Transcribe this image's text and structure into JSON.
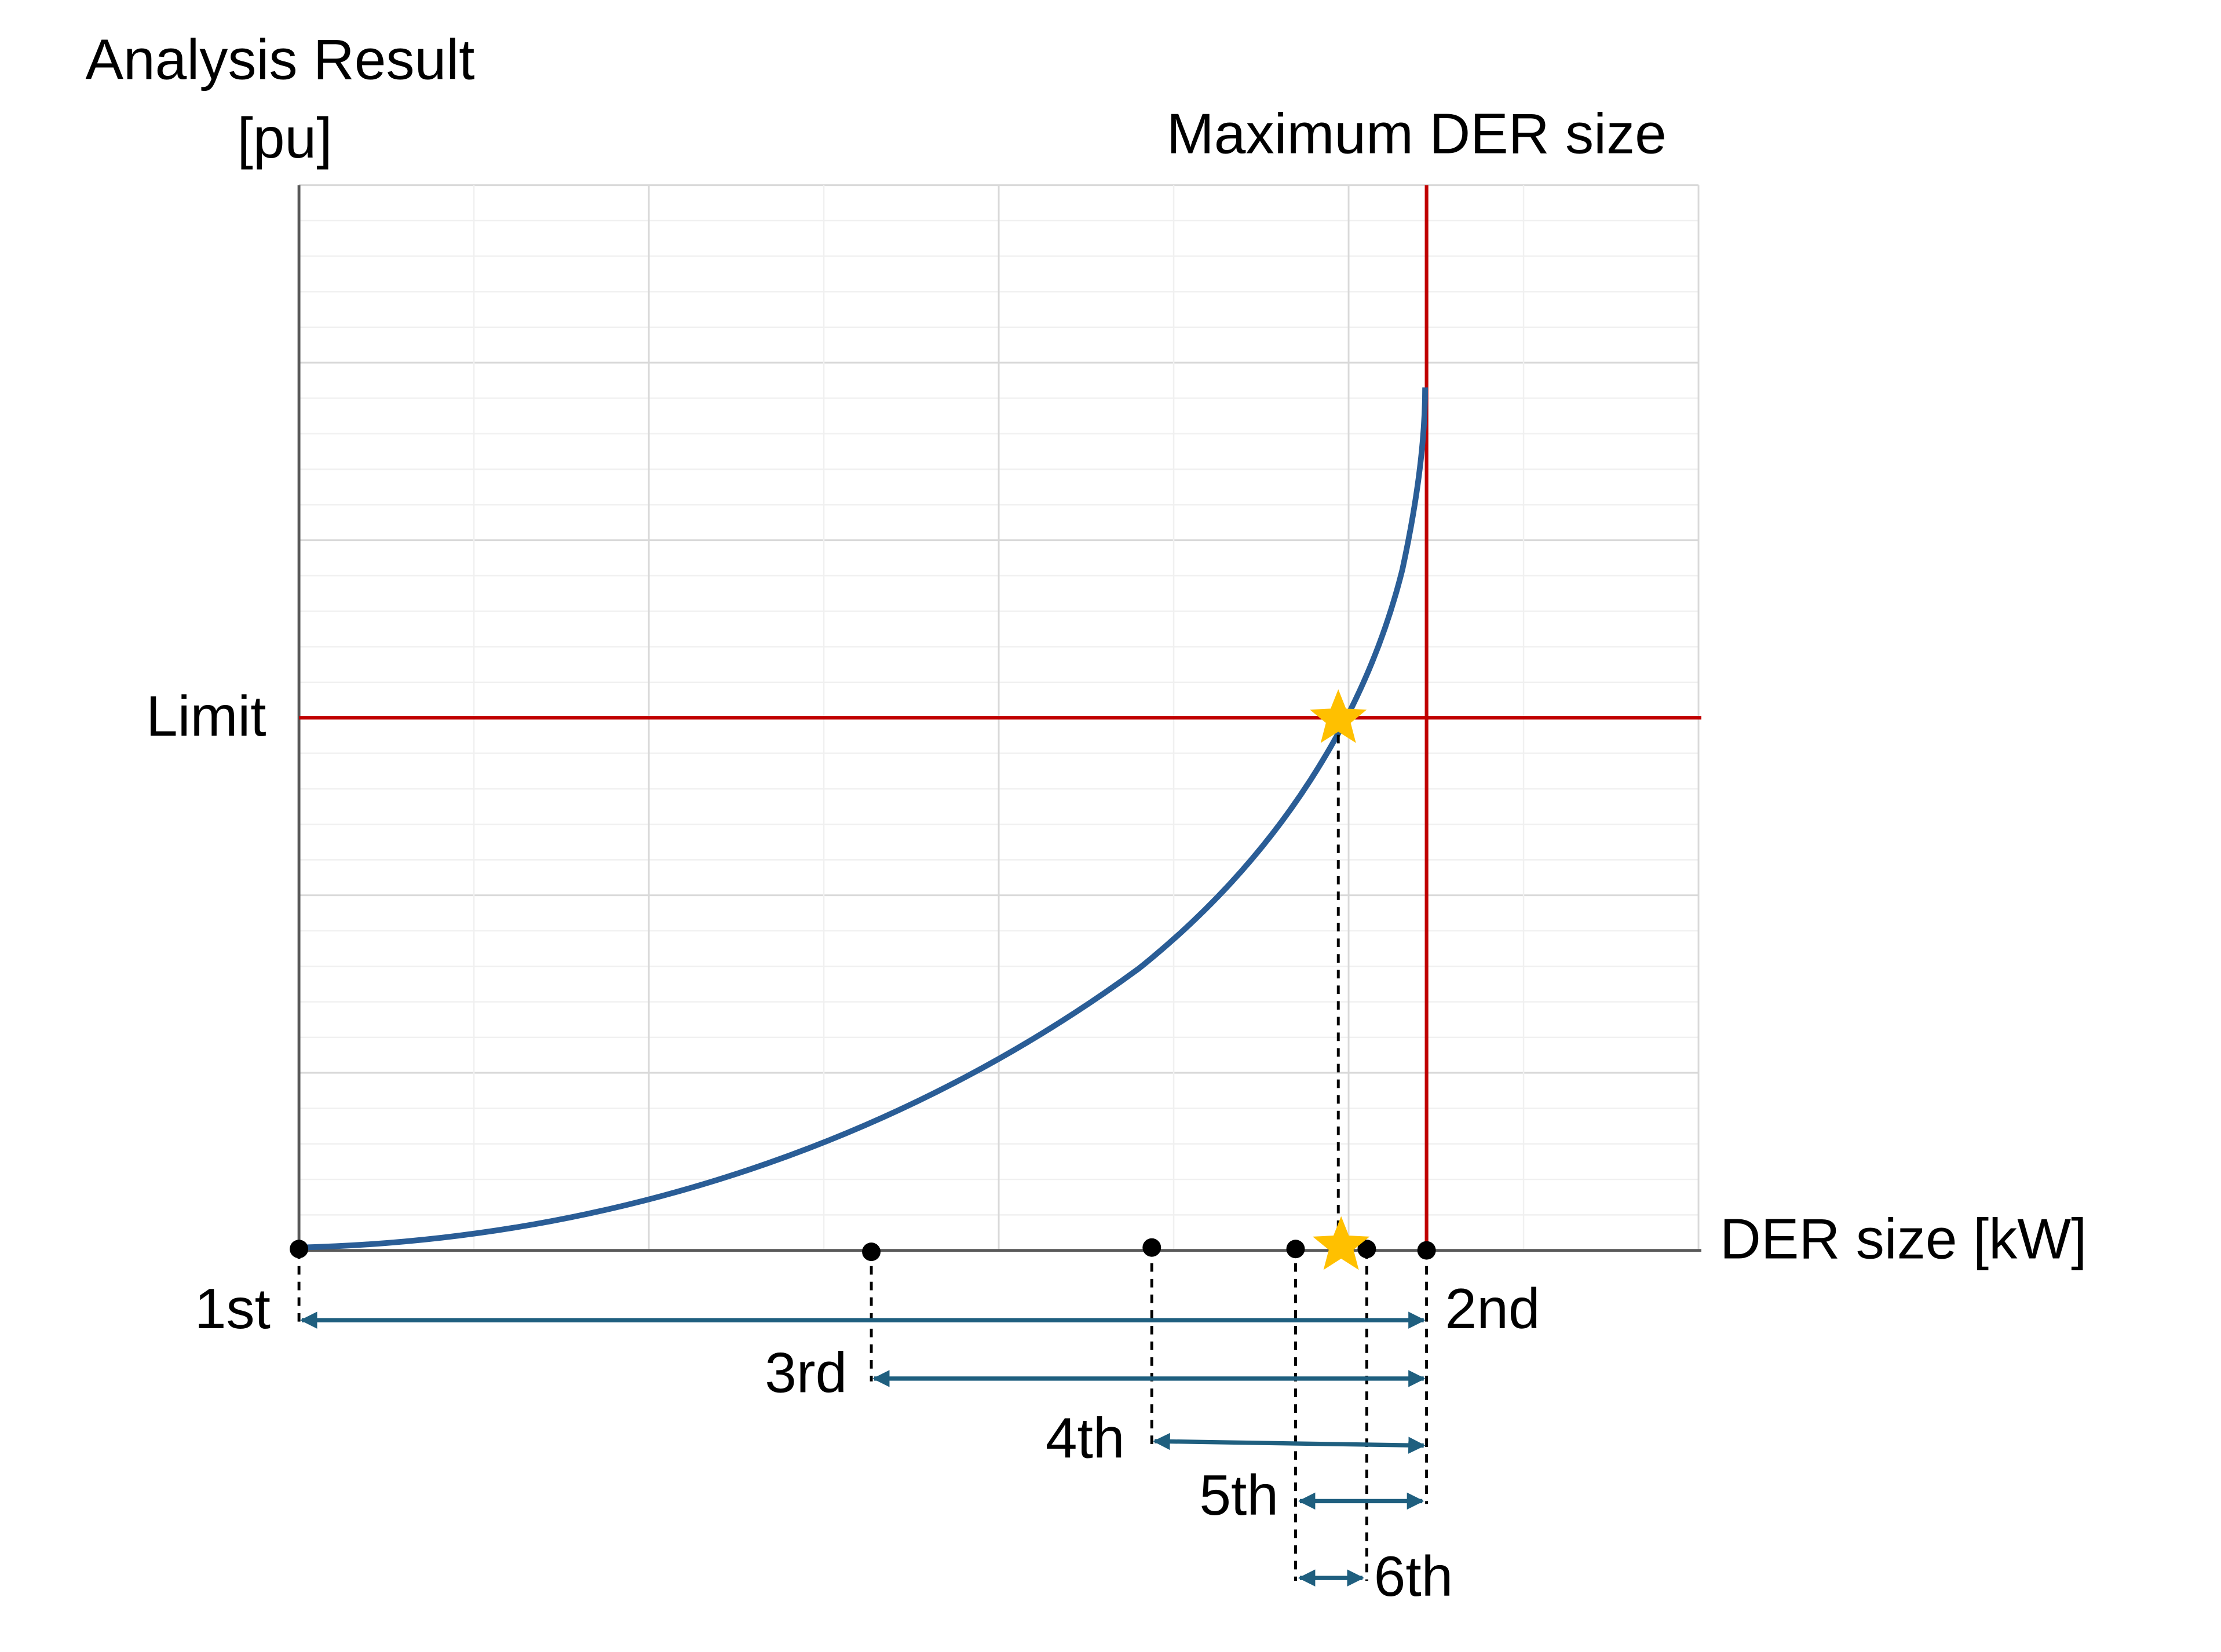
{
  "header": {
    "y_axis_title": "Analysis Result",
    "y_axis_unit": "[pu]",
    "max_label": "Maximum DER size",
    "limit_label": "Limit",
    "x_axis_title": "DER size [kW]"
  },
  "steps": [
    {
      "label": "1st"
    },
    {
      "label": "2nd"
    },
    {
      "label": "3rd"
    },
    {
      "label": "4th"
    },
    {
      "label": "5th"
    },
    {
      "label": "6th"
    }
  ]
}
